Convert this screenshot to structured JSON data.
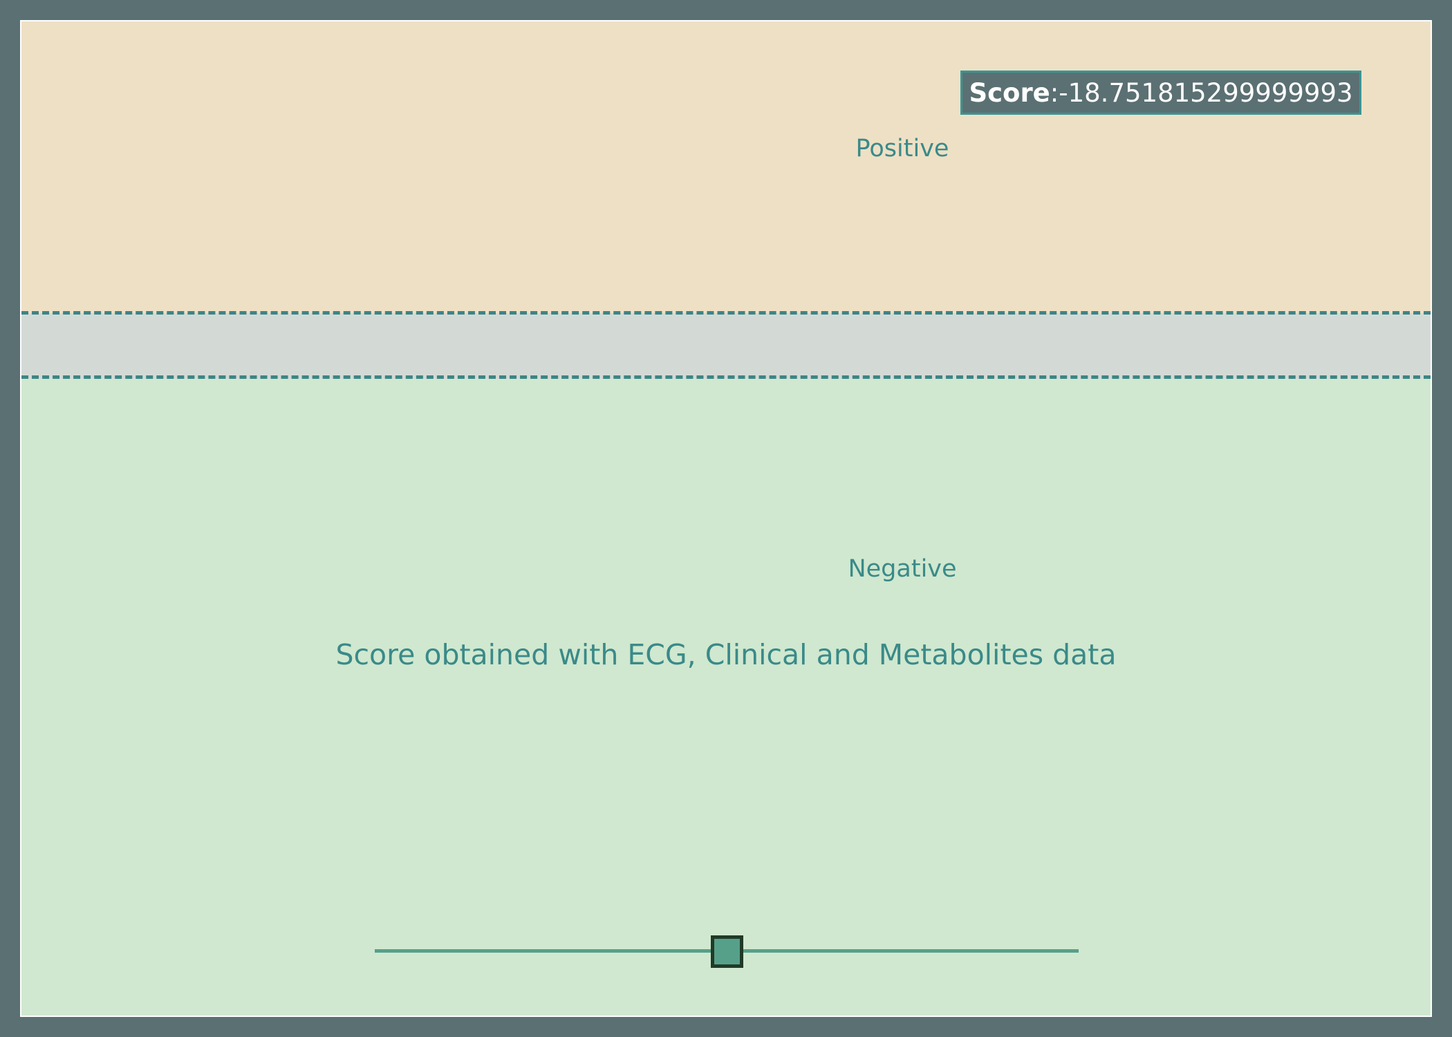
{
  "chart_data": {
    "type": "gauge",
    "title": "Score obtained with ECG, Clinical and Metabolites data",
    "regions": [
      {
        "name": "Positive",
        "color": "#eee0c5"
      },
      {
        "name": "Negative",
        "color": "#d0e8cf"
      }
    ],
    "threshold_band_color": "#d3dad6",
    "threshold_line_color": "#3d8585",
    "score": {
      "label": "Score",
      "separator": ": ",
      "value": "-18.751815299999993"
    },
    "slider": {
      "value_fraction": 0.5,
      "color": "#56a08a"
    }
  }
}
